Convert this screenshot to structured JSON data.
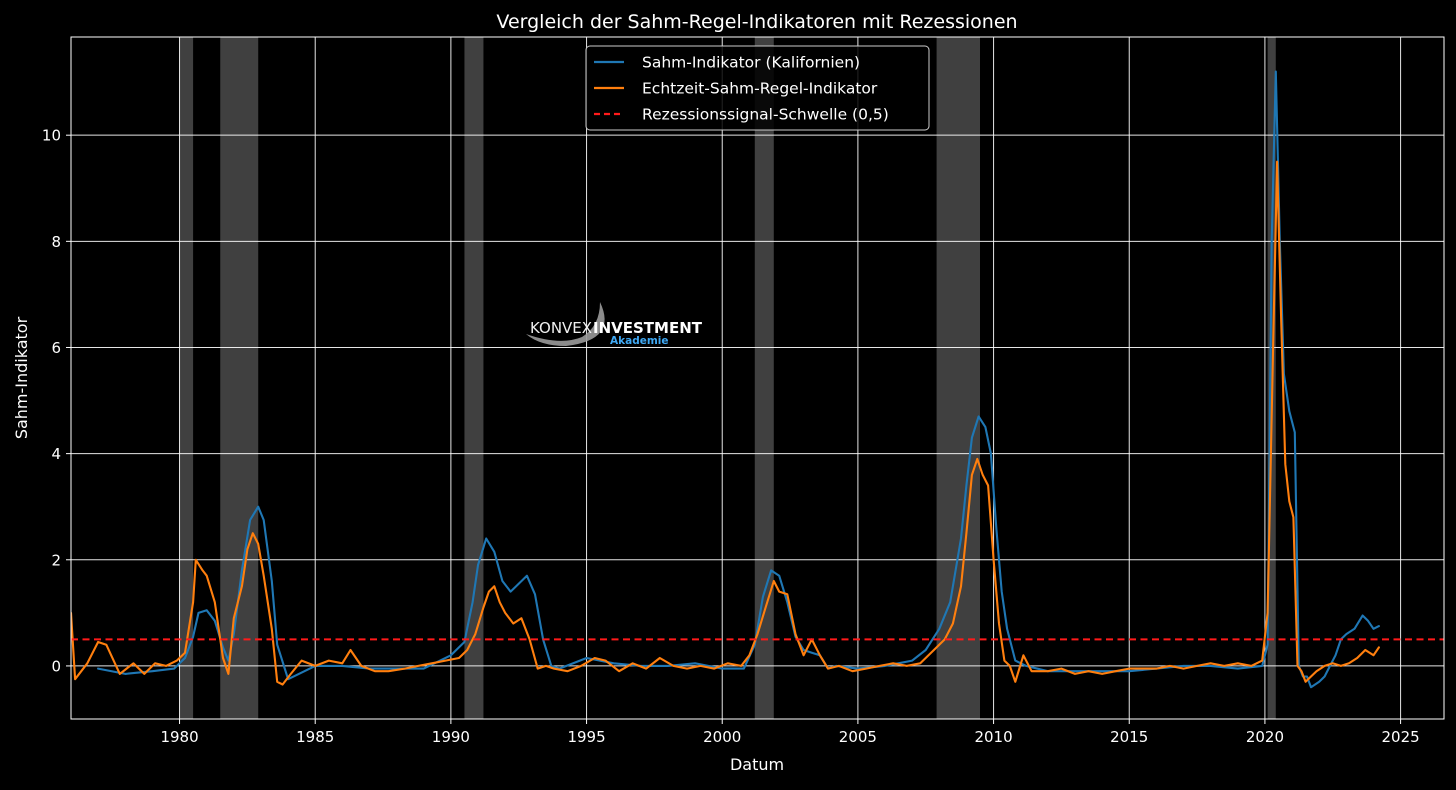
{
  "chart_data": {
    "type": "line",
    "title": "Vergleich der Sahm-Regel-Indikatoren mit Rezessionen",
    "xlabel": "Datum",
    "ylabel": "Sahm-Indikator",
    "xlim": [
      1976.0,
      2026.6
    ],
    "ylim": [
      -1.0,
      11.85
    ],
    "x_ticks": [
      1980,
      1985,
      1990,
      1995,
      2000,
      2005,
      2010,
      2015,
      2020,
      2025
    ],
    "y_ticks": [
      0,
      2,
      4,
      6,
      8,
      10
    ],
    "x_tick_labels": [
      "1980",
      "1985",
      "1990",
      "1995",
      "2000",
      "2005",
      "2010",
      "2015",
      "2020",
      "2025"
    ],
    "y_tick_labels": [
      "0",
      "2",
      "4",
      "6",
      "8",
      "10"
    ],
    "grid": true,
    "legend_position": "top-center",
    "recessions": [
      {
        "start": 1980.0,
        "end": 1980.5
      },
      {
        "start": 1981.5,
        "end": 1982.9
      },
      {
        "start": 1990.5,
        "end": 1991.2
      },
      {
        "start": 2001.2,
        "end": 2001.9
      },
      {
        "start": 2007.9,
        "end": 2009.5
      },
      {
        "start": 2020.1,
        "end": 2020.4
      }
    ],
    "threshold": {
      "name": "Rezessionssignal-Schwelle (0,5)",
      "value": 0.5,
      "color": "#ff1a1a",
      "style": "dashed"
    },
    "series": [
      {
        "name": "Sahm-Indikator (Kalifornien)",
        "color": "#1f77b4",
        "x": [
          1977.0,
          1978.0,
          1979.0,
          1979.8,
          1980.2,
          1980.5,
          1980.7,
          1981.0,
          1981.3,
          1981.6,
          1981.8,
          1982.0,
          1982.3,
          1982.6,
          1982.9,
          1983.1,
          1983.4,
          1983.6,
          1984.0,
          1985.0,
          1986.0,
          1987.0,
          1988.0,
          1989.0,
          1990.0,
          1990.5,
          1990.8,
          1991.0,
          1991.3,
          1991.6,
          1991.9,
          1992.2,
          1992.5,
          1992.8,
          1993.1,
          1993.4,
          1993.7,
          1994.0,
          1995.0,
          1996.0,
          1997.0,
          1998.0,
          1999.0,
          2000.0,
          2000.8,
          2001.2,
          2001.5,
          2001.8,
          2002.1,
          2002.4,
          2002.7,
          2003.0,
          2003.3,
          2003.6,
          2003.9,
          2004.2,
          2005.0,
          2006.0,
          2007.0,
          2007.5,
          2008.0,
          2008.4,
          2008.8,
          2009.0,
          2009.2,
          2009.45,
          2009.7,
          2009.9,
          2010.1,
          2010.3,
          2010.5,
          2010.8,
          2011.2,
          2012.0,
          2013.0,
          2014.0,
          2015.0,
          2016.0,
          2017.0,
          2018.0,
          2019.0,
          2019.9,
          2020.1,
          2020.25,
          2020.4,
          2020.55,
          2020.7,
          2020.9,
          2021.1,
          2021.25,
          2021.4,
          2021.55,
          2021.7,
          2021.85,
          2022.0,
          2022.2,
          2022.4,
          2022.6,
          2022.8,
          2023.0,
          2023.3,
          2023.6,
          2023.8,
          2024.0,
          2024.2
        ],
        "values": [
          -0.05,
          -0.15,
          -0.1,
          -0.05,
          0.15,
          0.55,
          1.0,
          1.05,
          0.85,
          0.35,
          0.1,
          0.6,
          1.8,
          2.75,
          3.0,
          2.75,
          1.6,
          0.4,
          -0.25,
          0.0,
          0.0,
          -0.05,
          -0.05,
          -0.05,
          0.2,
          0.45,
          1.2,
          1.9,
          2.4,
          2.15,
          1.6,
          1.4,
          1.55,
          1.7,
          1.35,
          0.5,
          0.0,
          -0.05,
          0.15,
          0.05,
          0.0,
          0.0,
          0.05,
          -0.05,
          -0.05,
          0.4,
          1.3,
          1.8,
          1.7,
          1.2,
          0.55,
          0.3,
          0.25,
          0.2,
          -0.05,
          0.0,
          -0.05,
          0.0,
          0.1,
          0.3,
          0.7,
          1.2,
          2.4,
          3.4,
          4.3,
          4.7,
          4.5,
          4.0,
          2.6,
          1.4,
          0.7,
          0.1,
          0.0,
          -0.1,
          -0.1,
          -0.1,
          -0.1,
          -0.05,
          0.0,
          0.0,
          -0.05,
          0.0,
          0.4,
          8.0,
          11.2,
          8.0,
          5.5,
          4.8,
          4.4,
          0.0,
          -0.2,
          -0.2,
          -0.4,
          -0.35,
          -0.3,
          -0.2,
          0.0,
          0.2,
          0.5,
          0.6,
          0.7,
          0.95,
          0.85,
          0.7,
          0.75
        ]
      },
      {
        "name": "Echtzeit-Sahm-Regel-Indikator",
        "color": "#ff7f0e",
        "x": [
          1976.0,
          1976.15,
          1976.6,
          1977.0,
          1977.3,
          1977.8,
          1978.3,
          1978.7,
          1979.1,
          1979.5,
          1979.9,
          1980.2,
          1980.5,
          1980.6,
          1980.85,
          1981.0,
          1981.3,
          1981.6,
          1981.8,
          1982.0,
          1982.3,
          1982.5,
          1982.7,
          1982.9,
          1983.1,
          1983.4,
          1983.6,
          1983.8,
          1984.1,
          1984.5,
          1985.0,
          1985.5,
          1986.0,
          1986.3,
          1986.7,
          1987.2,
          1987.7,
          1988.3,
          1988.8,
          1989.3,
          1989.8,
          1990.3,
          1990.6,
          1990.9,
          1991.2,
          1991.4,
          1991.6,
          1991.8,
          1992.0,
          1992.3,
          1992.6,
          1992.9,
          1993.2,
          1993.5,
          1993.8,
          1994.3,
          1994.8,
          1995.3,
          1995.7,
          1996.2,
          1996.7,
          1997.2,
          1997.7,
          1998.2,
          1998.7,
          1999.2,
          1999.7,
          2000.2,
          2000.7,
          2001.0,
          2001.3,
          2001.6,
          2001.9,
          2002.1,
          2002.4,
          2002.7,
          2003.0,
          2003.3,
          2003.6,
          2003.9,
          2004.3,
          2004.8,
          2005.3,
          2005.8,
          2006.3,
          2006.8,
          2007.3,
          2007.8,
          2008.2,
          2008.5,
          2008.8,
          2009.0,
          2009.2,
          2009.4,
          2009.6,
          2009.8,
          2010.0,
          2010.2,
          2010.4,
          2010.6,
          2010.8,
          2011.1,
          2011.4,
          2011.7,
          2012.0,
          2012.5,
          2013.0,
          2013.5,
          2014.0,
          2014.5,
          2015.0,
          2015.5,
          2016.0,
          2016.5,
          2017.0,
          2017.5,
          2018.0,
          2018.5,
          2019.0,
          2019.5,
          2019.9,
          2020.1,
          2020.3,
          2020.45,
          2020.6,
          2020.75,
          2020.9,
          2021.05,
          2021.2,
          2021.35,
          2021.5,
          2021.7,
          2021.9,
          2022.2,
          2022.5,
          2022.8,
          2023.1,
          2023.4,
          2023.7,
          2024.0,
          2024.2
        ],
        "values": [
          1.0,
          -0.25,
          0.05,
          0.45,
          0.4,
          -0.15,
          0.05,
          -0.15,
          0.05,
          0.0,
          0.1,
          0.25,
          1.2,
          2.0,
          1.8,
          1.7,
          1.2,
          0.15,
          -0.15,
          0.9,
          1.5,
          2.2,
          2.5,
          2.3,
          1.7,
          0.7,
          -0.3,
          -0.35,
          -0.15,
          0.1,
          0.0,
          0.1,
          0.05,
          0.3,
          0.0,
          -0.1,
          -0.1,
          -0.05,
          0.0,
          0.05,
          0.1,
          0.15,
          0.3,
          0.6,
          1.1,
          1.4,
          1.5,
          1.2,
          1.0,
          0.8,
          0.9,
          0.5,
          -0.05,
          0.0,
          -0.05,
          -0.1,
          0.0,
          0.15,
          0.1,
          -0.1,
          0.05,
          -0.05,
          0.15,
          0.0,
          -0.05,
          0.0,
          -0.05,
          0.05,
          0.0,
          0.2,
          0.6,
          1.1,
          1.6,
          1.4,
          1.35,
          0.6,
          0.2,
          0.5,
          0.2,
          -0.05,
          0.0,
          -0.1,
          -0.05,
          0.0,
          0.05,
          0.0,
          0.05,
          0.3,
          0.5,
          0.8,
          1.5,
          2.5,
          3.6,
          3.9,
          3.6,
          3.4,
          2.0,
          0.8,
          0.1,
          0.0,
          -0.3,
          0.2,
          -0.1,
          -0.1,
          -0.1,
          -0.05,
          -0.15,
          -0.1,
          -0.15,
          -0.1,
          -0.05,
          -0.05,
          -0.05,
          0.0,
          -0.05,
          0.0,
          0.05,
          0.0,
          0.05,
          0.0,
          0.1,
          1.0,
          6.0,
          9.5,
          6.5,
          3.8,
          3.1,
          2.8,
          0.0,
          -0.1,
          -0.3,
          -0.2,
          -0.1,
          0.0,
          0.05,
          0.0,
          0.05,
          0.15,
          0.3,
          0.2,
          0.35
        ]
      }
    ],
    "watermark": {
      "brand_left": "KONVEX",
      "brand_right": "INVESTMENT",
      "brand_sub": "Akademie"
    }
  }
}
